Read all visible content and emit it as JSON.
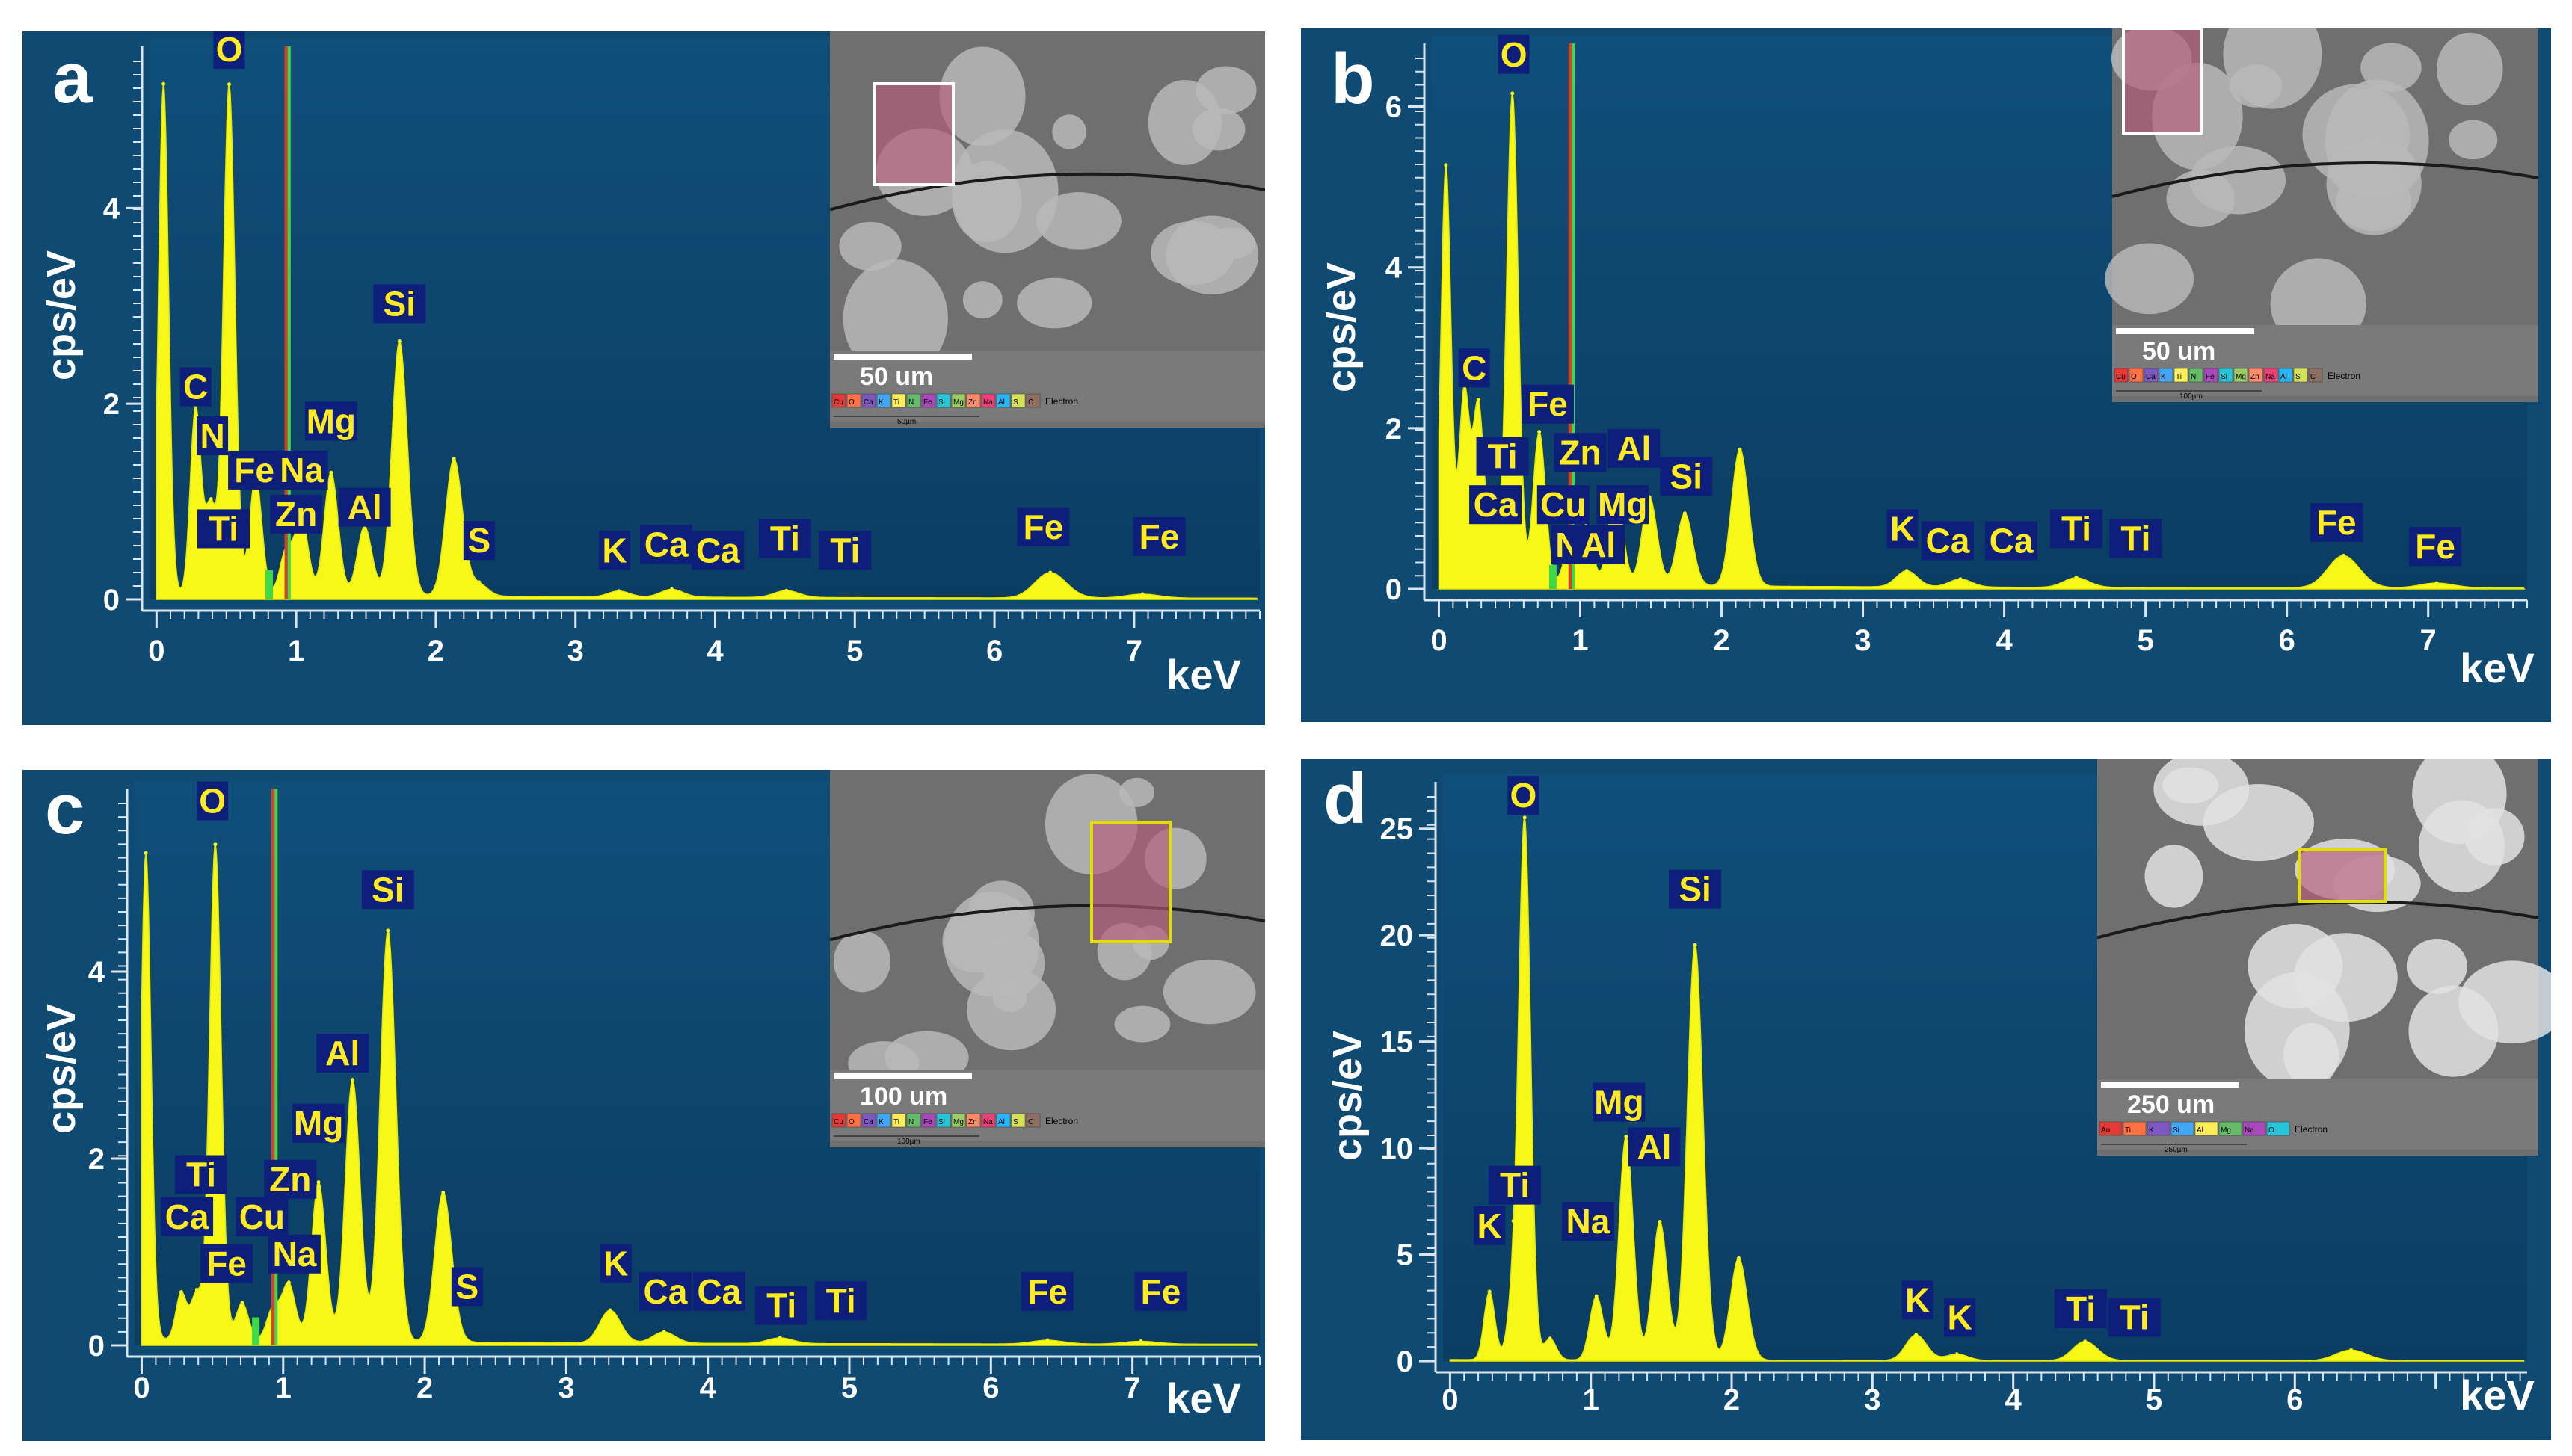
{
  "colors": {
    "panel_bg": "#0f4a73",
    "plot_bg": "#10507b",
    "spectrum": "#f7f718",
    "element_label_bg": "#0d1f7a",
    "element_label_text": "#ffeb1f",
    "marker_red": "#d8402a",
    "marker_green": "#3fd84a"
  },
  "chart_data": [
    {
      "panel": "a",
      "type": "area",
      "ylabel": "cps/eV",
      "xunit": "keV",
      "xlim": [
        -0.05,
        7.9
      ],
      "ylim": [
        0,
        5.5
      ],
      "x_ticks": [
        "0",
        "1",
        "2",
        "3",
        "4",
        "5",
        "6",
        "7"
      ],
      "y_ticks": [
        "0",
        "2",
        "4"
      ],
      "peaks": [
        {
          "x": 0.05,
          "y": 5.2
        },
        {
          "x": 0.28,
          "y": 1.9
        },
        {
          "x": 0.39,
          "y": 0.9
        },
        {
          "x": 0.52,
          "y": 5.2
        },
        {
          "x": 0.71,
          "y": 1.2
        },
        {
          "x": 0.93,
          "y": 0.45
        },
        {
          "x": 1.04,
          "y": 0.75
        },
        {
          "x": 1.25,
          "y": 1.25
        },
        {
          "x": 1.49,
          "y": 0.7
        },
        {
          "x": 1.74,
          "y": 2.6
        },
        {
          "x": 2.13,
          "y": 1.4
        },
        {
          "x": 2.31,
          "y": 0.12
        },
        {
          "x": 3.31,
          "y": 0.06
        },
        {
          "x": 3.69,
          "y": 0.08
        },
        {
          "x": 4.51,
          "y": 0.07
        },
        {
          "x": 6.4,
          "y": 0.26
        },
        {
          "x": 7.06,
          "y": 0.04
        }
      ],
      "element_labels": [
        {
          "text": "O",
          "x": 0.52,
          "y": 5.5
        },
        {
          "text": "C",
          "x": 0.28,
          "y": 2.05
        },
        {
          "text": "N",
          "x": 0.4,
          "y": 1.55
        },
        {
          "text": "Fe",
          "x": 0.7,
          "y": 1.2
        },
        {
          "text": "Na",
          "x": 1.04,
          "y": 1.2
        },
        {
          "text": "Mg",
          "x": 1.25,
          "y": 1.7
        },
        {
          "text": "Ti",
          "x": 0.48,
          "y": 0.6
        },
        {
          "text": "Zn",
          "x": 1.0,
          "y": 0.75
        },
        {
          "text": "Al",
          "x": 1.49,
          "y": 0.82
        },
        {
          "text": "Si",
          "x": 1.74,
          "y": 2.9
        },
        {
          "text": "S",
          "x": 2.31,
          "y": 0.48
        },
        {
          "text": "K",
          "x": 3.28,
          "y": 0.38
        },
        {
          "text": "Ca",
          "x": 3.65,
          "y": 0.44
        },
        {
          "text": "Ca",
          "x": 4.02,
          "y": 0.38
        },
        {
          "text": "Ti",
          "x": 4.5,
          "y": 0.5
        },
        {
          "text": "Ti",
          "x": 4.93,
          "y": 0.38
        },
        {
          "text": "Fe",
          "x": 6.35,
          "y": 0.62
        },
        {
          "text": "Fe",
          "x": 7.18,
          "y": 0.52
        }
      ],
      "inset": {
        "scale_bar": "50 um",
        "scale_small": "50µm"
      }
    },
    {
      "panel": "b",
      "type": "area",
      "ylabel": "cps/eV",
      "xunit": "keV",
      "xlim": [
        -0.05,
        7.7
      ],
      "ylim": [
        0,
        6.6
      ],
      "x_ticks": [
        "0",
        "1",
        "2",
        "3",
        "4",
        "5",
        "6",
        "7"
      ],
      "y_ticks": [
        "0",
        "2",
        "4",
        "6"
      ],
      "peaks": [
        {
          "x": 0.05,
          "y": 5.2
        },
        {
          "x": 0.18,
          "y": 2.4
        },
        {
          "x": 0.28,
          "y": 2.2
        },
        {
          "x": 0.39,
          "y": 0.8
        },
        {
          "x": 0.52,
          "y": 6.1
        },
        {
          "x": 0.71,
          "y": 1.9
        },
        {
          "x": 0.93,
          "y": 0.5
        },
        {
          "x": 1.04,
          "y": 0.7
        },
        {
          "x": 1.25,
          "y": 1.2
        },
        {
          "x": 1.49,
          "y": 1.1
        },
        {
          "x": 1.74,
          "y": 0.9
        },
        {
          "x": 2.13,
          "y": 1.7
        },
        {
          "x": 3.31,
          "y": 0.2
        },
        {
          "x": 3.69,
          "y": 0.1
        },
        {
          "x": 4.51,
          "y": 0.12
        },
        {
          "x": 6.4,
          "y": 0.4
        },
        {
          "x": 7.06,
          "y": 0.06
        }
      ],
      "element_labels": [
        {
          "text": "O",
          "x": 0.53,
          "y": 6.5
        },
        {
          "text": "C",
          "x": 0.25,
          "y": 2.6
        },
        {
          "text": "Fe",
          "x": 0.77,
          "y": 2.15
        },
        {
          "text": "Ti",
          "x": 0.45,
          "y": 1.5
        },
        {
          "text": "Zn",
          "x": 1.0,
          "y": 1.55
        },
        {
          "text": "Al",
          "x": 1.38,
          "y": 1.6
        },
        {
          "text": "Ca",
          "x": 0.4,
          "y": 0.9
        },
        {
          "text": "Cu",
          "x": 0.88,
          "y": 0.9
        },
        {
          "text": "Mg",
          "x": 1.3,
          "y": 0.9
        },
        {
          "text": "Si",
          "x": 1.75,
          "y": 1.25
        },
        {
          "text": "Na",
          "x": 0.98,
          "y": 0.4
        },
        {
          "text": "Al",
          "x": 1.13,
          "y": 0.4
        },
        {
          "text": "K",
          "x": 3.28,
          "y": 0.6
        },
        {
          "text": "Ca",
          "x": 3.6,
          "y": 0.45
        },
        {
          "text": "Ca",
          "x": 4.05,
          "y": 0.45
        },
        {
          "text": "Ti",
          "x": 4.51,
          "y": 0.6
        },
        {
          "text": "Ti",
          "x": 4.93,
          "y": 0.48
        },
        {
          "text": "Fe",
          "x": 6.35,
          "y": 0.68
        },
        {
          "text": "Fe",
          "x": 7.05,
          "y": 0.38
        }
      ],
      "inset": {
        "scale_bar": "50 um",
        "scale_small": "100µm"
      }
    },
    {
      "panel": "c",
      "type": "area",
      "ylabel": "cps/eV",
      "xunit": "keV",
      "xlim": [
        -0.05,
        7.9
      ],
      "ylim": [
        0,
        5.8
      ],
      "x_ticks": [
        "0",
        "1",
        "2",
        "3",
        "4",
        "5",
        "6",
        "7"
      ],
      "y_ticks": [
        "0",
        "2",
        "4"
      ],
      "peaks": [
        {
          "x": 0.03,
          "y": 5.2
        },
        {
          "x": 0.28,
          "y": 0.5
        },
        {
          "x": 0.39,
          "y": 0.5
        },
        {
          "x": 0.52,
          "y": 5.3
        },
        {
          "x": 0.71,
          "y": 0.4
        },
        {
          "x": 0.93,
          "y": 0.35
        },
        {
          "x": 1.04,
          "y": 0.6
        },
        {
          "x": 1.25,
          "y": 1.7
        },
        {
          "x": 1.49,
          "y": 2.8
        },
        {
          "x": 1.74,
          "y": 4.4
        },
        {
          "x": 2.13,
          "y": 1.6
        },
        {
          "x": 3.31,
          "y": 0.35
        },
        {
          "x": 3.69,
          "y": 0.12
        },
        {
          "x": 4.51,
          "y": 0.06
        },
        {
          "x": 6.4,
          "y": 0.04
        },
        {
          "x": 7.06,
          "y": 0.03
        }
      ],
      "element_labels": [
        {
          "text": "O",
          "x": 0.5,
          "y": 5.7
        },
        {
          "text": "Si",
          "x": 1.74,
          "y": 4.75
        },
        {
          "text": "Al",
          "x": 1.42,
          "y": 3.0
        },
        {
          "text": "Mg",
          "x": 1.25,
          "y": 2.25
        },
        {
          "text": "Ti",
          "x": 0.42,
          "y": 1.7
        },
        {
          "text": "Zn",
          "x": 1.05,
          "y": 1.65
        },
        {
          "text": "Ca",
          "x": 0.32,
          "y": 1.25
        },
        {
          "text": "Cu",
          "x": 0.85,
          "y": 1.25
        },
        {
          "text": "Fe",
          "x": 0.6,
          "y": 0.75
        },
        {
          "text": "Na",
          "x": 1.08,
          "y": 0.85
        },
        {
          "text": "S",
          "x": 2.3,
          "y": 0.5
        },
        {
          "text": "K",
          "x": 3.35,
          "y": 0.75
        },
        {
          "text": "Ca",
          "x": 3.7,
          "y": 0.45
        },
        {
          "text": "Ca",
          "x": 4.08,
          "y": 0.45
        },
        {
          "text": "Ti",
          "x": 4.52,
          "y": 0.3
        },
        {
          "text": "Ti",
          "x": 4.94,
          "y": 0.35
        },
        {
          "text": "Fe",
          "x": 6.4,
          "y": 0.45
        },
        {
          "text": "Fe",
          "x": 7.2,
          "y": 0.45
        }
      ],
      "inset": {
        "scale_bar": "100 um",
        "scale_small": "100µm"
      }
    },
    {
      "panel": "d",
      "type": "area",
      "ylabel": "cps/eV",
      "xunit": "keV",
      "xlim": [
        -0.05,
        7.65
      ],
      "ylim": [
        0,
        26.5
      ],
      "x_ticks": [
        "0",
        "1",
        "2",
        "3",
        "4",
        "5",
        "6"
      ],
      "y_ticks": [
        "0",
        "5",
        "10",
        "15",
        "20",
        "25"
      ],
      "peaks": [
        {
          "x": 0.28,
          "y": 3.2
        },
        {
          "x": 0.45,
          "y": 3.0
        },
        {
          "x": 0.53,
          "y": 25
        },
        {
          "x": 0.71,
          "y": 1.0
        },
        {
          "x": 1.04,
          "y": 3.0
        },
        {
          "x": 1.25,
          "y": 10.5
        },
        {
          "x": 1.49,
          "y": 6.5
        },
        {
          "x": 1.74,
          "y": 19.5
        },
        {
          "x": 2.05,
          "y": 4.8
        },
        {
          "x": 3.31,
          "y": 1.2
        },
        {
          "x": 3.6,
          "y": 0.3
        },
        {
          "x": 4.51,
          "y": 0.9
        },
        {
          "x": 6.4,
          "y": 0.5
        }
      ],
      "element_labels": [
        {
          "text": "O",
          "x": 0.52,
          "y": 26
        },
        {
          "text": "Si",
          "x": 1.74,
          "y": 21.6
        },
        {
          "text": "Mg",
          "x": 1.2,
          "y": 11.6
        },
        {
          "text": "Al",
          "x": 1.45,
          "y": 9.5
        },
        {
          "text": "Ti",
          "x": 0.46,
          "y": 7.7
        },
        {
          "text": "K",
          "x": 0.28,
          "y": 5.8
        },
        {
          "text": "Na",
          "x": 0.98,
          "y": 6.0
        },
        {
          "text": "K",
          "x": 3.32,
          "y": 2.3
        },
        {
          "text": "K",
          "x": 3.62,
          "y": 1.5
        },
        {
          "text": "Ti",
          "x": 4.48,
          "y": 1.9
        },
        {
          "text": "Ti",
          "x": 4.86,
          "y": 1.5
        }
      ],
      "inset": {
        "scale_bar": "250 um",
        "scale_small": "250µm"
      }
    }
  ],
  "panels_layout_keys": [
    "a",
    "b",
    "c",
    "d"
  ],
  "inset_legend_items": {
    "a": [
      "Cu",
      "O",
      "Ca",
      "K",
      "Ti",
      "N",
      "Fe",
      "Si",
      "Mg",
      "Zn",
      "Na",
      "Al",
      "S",
      "C"
    ],
    "b": [
      "Cu",
      "O",
      "Ca",
      "K",
      "Ti",
      "N",
      "Fe",
      "Si",
      "Mg",
      "Zn",
      "Na",
      "Al",
      "S",
      "C"
    ],
    "c": [
      "Cu",
      "O",
      "Ca",
      "K",
      "Ti",
      "N",
      "Fe",
      "Si",
      "Mg",
      "Zn",
      "Na",
      "Al",
      "S",
      "C"
    ],
    "d": [
      "Au",
      "Ti",
      "K",
      "Si",
      "Al",
      "Mg",
      "Na",
      "O"
    ]
  },
  "inset_legend_tail": "Electron"
}
